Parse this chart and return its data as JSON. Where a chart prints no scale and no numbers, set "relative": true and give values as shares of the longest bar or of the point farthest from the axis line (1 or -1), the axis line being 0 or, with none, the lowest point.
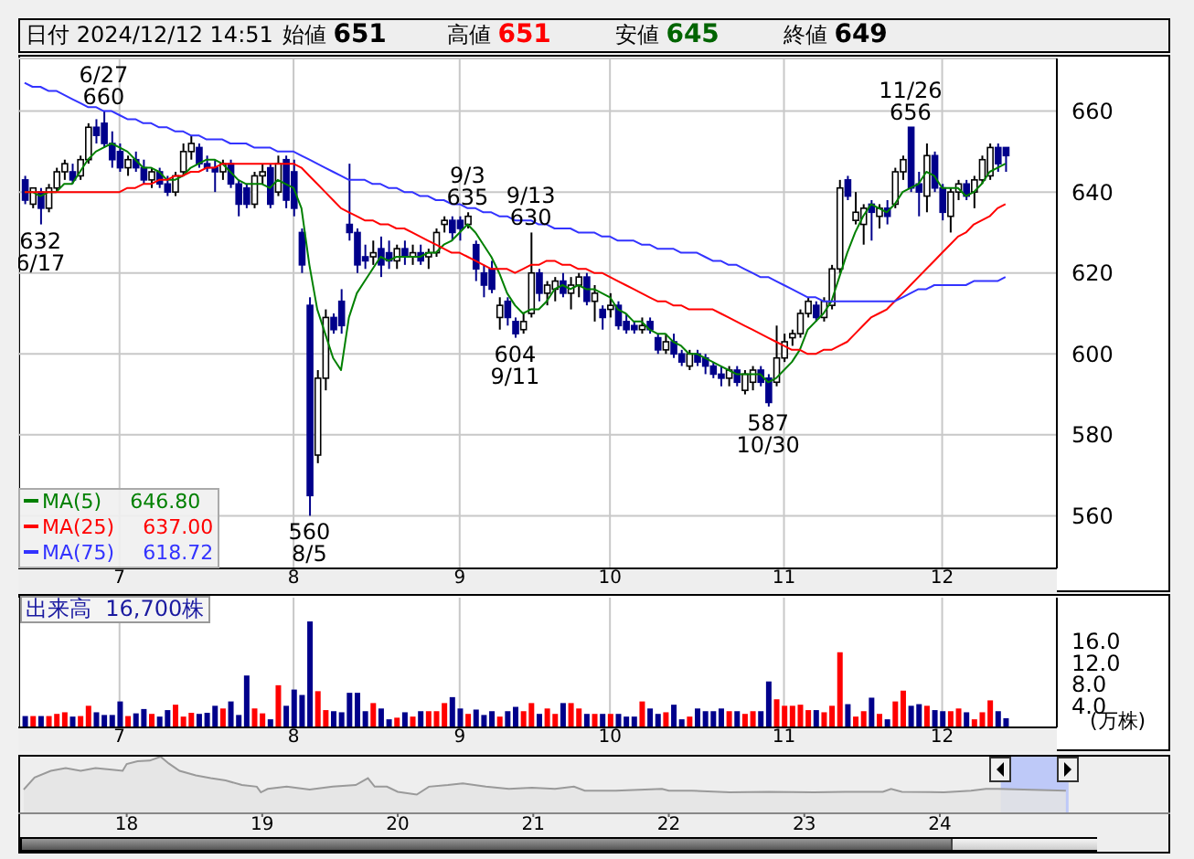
{
  "chart_data": [
    {
      "type": "candlestick",
      "title": "日付 2024/12/12 14:51",
      "annotations": [
        "始値 651",
        "高値 651",
        "安値 645",
        "終値 649",
        {
          "text": "6/27\n660",
          "y": 660
        },
        {
          "text": "632\n6/17",
          "y": 632
        },
        {
          "text": "560\n8/5",
          "y": 560
        },
        {
          "text": "9/3\n635",
          "y": 635
        },
        {
          "text": "604\n9/11",
          "y": 604
        },
        {
          "text": "9/13\n630",
          "y": 630
        },
        {
          "text": "587\n10/30",
          "y": 587
        },
        {
          "text": "11/26\n656",
          "y": 656
        }
      ],
      "categories": [
        null,
        null,
        null,
        null,
        null,
        null,
        null,
        null,
        null,
        null,
        null,
        null,
        "7",
        null,
        null,
        null,
        null,
        null,
        null,
        null,
        null,
        null,
        null,
        null,
        null,
        null,
        null,
        null,
        null,
        null,
        null,
        null,
        null,
        null,
        "8",
        null,
        null,
        null,
        null,
        null,
        null,
        null,
        null,
        null,
        null,
        null,
        null,
        null,
        null,
        null,
        null,
        null,
        null,
        null,
        null,
        "9",
        null,
        null,
        null,
        null,
        null,
        null,
        null,
        null,
        null,
        null,
        null,
        null,
        null,
        null,
        null,
        null,
        null,
        null,
        "10",
        null,
        null,
        null,
        null,
        null,
        null,
        null,
        null,
        null,
        null,
        null,
        null,
        null,
        null,
        null,
        null,
        null,
        null,
        null,
        null,
        null,
        "11",
        null,
        null,
        null,
        null,
        null,
        null,
        null,
        null,
        null,
        null,
        null,
        null,
        null,
        null,
        null,
        null,
        null,
        null,
        null,
        "12",
        null,
        null,
        null,
        null,
        null,
        null,
        null,
        null
      ],
      "ohlc": [
        [
          643,
          644,
          637,
          638
        ],
        [
          637,
          641,
          636,
          641
        ],
        [
          640,
          641,
          632,
          636
        ],
        [
          636,
          642,
          635,
          641
        ],
        [
          641,
          646,
          640,
          645
        ],
        [
          645,
          648,
          643,
          647
        ],
        [
          645,
          647,
          642,
          643
        ],
        [
          644,
          649,
          643,
          648
        ],
        [
          648,
          657,
          647,
          656
        ],
        [
          656,
          658,
          652,
          654
        ],
        [
          657,
          660,
          651,
          652
        ],
        [
          652,
          655,
          646,
          648
        ],
        [
          650,
          652,
          645,
          646
        ],
        [
          646,
          649,
          644,
          648
        ],
        [
          648,
          650,
          645,
          646
        ],
        [
          646,
          648,
          642,
          643
        ],
        [
          643,
          646,
          641,
          645
        ],
        [
          645,
          646,
          641,
          642
        ],
        [
          642,
          644,
          639,
          640
        ],
        [
          640,
          645,
          639,
          644
        ],
        [
          645,
          652,
          644,
          650
        ],
        [
          650,
          654,
          648,
          652
        ],
        [
          651,
          652,
          646,
          647
        ],
        [
          647,
          649,
          645,
          646
        ],
        [
          646,
          648,
          640,
          645
        ],
        [
          645,
          648,
          643,
          647
        ],
        [
          647,
          648,
          641,
          642
        ],
        [
          642,
          643,
          634,
          637
        ],
        [
          641,
          642,
          636,
          637
        ],
        [
          637,
          645,
          636,
          644
        ],
        [
          644,
          647,
          642,
          645
        ],
        [
          646,
          647,
          636,
          637
        ],
        [
          640,
          649,
          639,
          647
        ],
        [
          648,
          649,
          636,
          638
        ],
        [
          645,
          648,
          634,
          636
        ],
        [
          630,
          631,
          620,
          622
        ],
        [
          612,
          614,
          560,
          565
        ],
        [
          575,
          596,
          573,
          594
        ],
        [
          594,
          611,
          591,
          609
        ],
        [
          609,
          610,
          605,
          606
        ],
        [
          613,
          616,
          605,
          607
        ],
        [
          632,
          647,
          628,
          630
        ],
        [
          630,
          631,
          620,
          622
        ],
        [
          624,
          627,
          621,
          623
        ],
        [
          624,
          628,
          622,
          625
        ],
        [
          626,
          629,
          619,
          622
        ],
        [
          625,
          628,
          621,
          623
        ],
        [
          623,
          627,
          621,
          626
        ],
        [
          626,
          628,
          622,
          624
        ],
        [
          624,
          627,
          622,
          625
        ],
        [
          625,
          627,
          622,
          623
        ],
        [
          624,
          626,
          621,
          625
        ],
        [
          625,
          631,
          624,
          630
        ],
        [
          632,
          634,
          630,
          633
        ],
        [
          633,
          634,
          628,
          630
        ],
        [
          633,
          634,
          628,
          631
        ],
        [
          632,
          635,
          631,
          634
        ],
        [
          627,
          628,
          618,
          621
        ],
        [
          620,
          622,
          614,
          617
        ],
        [
          621,
          623,
          615,
          616
        ],
        [
          609,
          614,
          606,
          612
        ],
        [
          613,
          614,
          607,
          609
        ],
        [
          608,
          609,
          604,
          605
        ],
        [
          606,
          610,
          605,
          608
        ],
        [
          610,
          630,
          609,
          620
        ],
        [
          620,
          621,
          613,
          615
        ],
        [
          615,
          618,
          612,
          617
        ],
        [
          616,
          619,
          613,
          618
        ],
        [
          618,
          620,
          614,
          615
        ],
        [
          615,
          619,
          611,
          617
        ],
        [
          617,
          620,
          614,
          619
        ],
        [
          619,
          620,
          612,
          613
        ],
        [
          613,
          617,
          608,
          615
        ],
        [
          611,
          612,
          606,
          609
        ],
        [
          611,
          615,
          609,
          612
        ],
        [
          612,
          613,
          606,
          607
        ],
        [
          608,
          610,
          605,
          606
        ],
        [
          607,
          608,
          605,
          606
        ],
        [
          606,
          609,
          605,
          607
        ],
        [
          608,
          609,
          605,
          606
        ],
        [
          604,
          605,
          600,
          601
        ],
        [
          601,
          605,
          600,
          603
        ],
        [
          603,
          605,
          599,
          600
        ],
        [
          600,
          601,
          597,
          598
        ],
        [
          597,
          601,
          596,
          600
        ],
        [
          600,
          601,
          597,
          598
        ],
        [
          599,
          600,
          595,
          597
        ],
        [
          597,
          598,
          594,
          595
        ],
        [
          595,
          597,
          592,
          594
        ],
        [
          594,
          597,
          592,
          596
        ],
        [
          596,
          597,
          592,
          593
        ],
        [
          591,
          596,
          590,
          595
        ],
        [
          593,
          597,
          591,
          596
        ],
        [
          596,
          597,
          592,
          593
        ],
        [
          594,
          595,
          587,
          588
        ],
        [
          593,
          607,
          592,
          599
        ],
        [
          599,
          605,
          598,
          603
        ],
        [
          604,
          606,
          602,
          605
        ],
        [
          605,
          611,
          604,
          610
        ],
        [
          610,
          614,
          609,
          613
        ],
        [
          612,
          613,
          608,
          609
        ],
        [
          609,
          614,
          608,
          613
        ],
        [
          612,
          622,
          611,
          621
        ],
        [
          621,
          643,
          620,
          641
        ],
        [
          643,
          644,
          638,
          639
        ],
        [
          633,
          640,
          632,
          635
        ],
        [
          632,
          637,
          627,
          636
        ],
        [
          637,
          638,
          628,
          635
        ],
        [
          634,
          637,
          631,
          636
        ],
        [
          636,
          638,
          632,
          634
        ],
        [
          637,
          646,
          636,
          645
        ],
        [
          645,
          649,
          643,
          648
        ],
        [
          656,
          656,
          640,
          641
        ],
        [
          642,
          645,
          634,
          640
        ],
        [
          639,
          652,
          635,
          649
        ],
        [
          649,
          650,
          640,
          641
        ],
        [
          641,
          642,
          633,
          635
        ],
        [
          634,
          641,
          630,
          640
        ],
        [
          640,
          643,
          638,
          642
        ],
        [
          642,
          643,
          638,
          639
        ],
        [
          640,
          644,
          636,
          643
        ],
        [
          643,
          649,
          642,
          648
        ],
        [
          644,
          652,
          643,
          651
        ],
        [
          651,
          652,
          645,
          647
        ],
        [
          651,
          651,
          645,
          649
        ]
      ],
      "series": [
        {
          "type": "line",
          "name": "MA(5) 646.80",
          "color": "#008000",
          "values": [
            640,
            640,
            639,
            640,
            640,
            642,
            642,
            645,
            648,
            650,
            651,
            652,
            651,
            650,
            648,
            646,
            646,
            645,
            643,
            643,
            644,
            646,
            647,
            648,
            648,
            647,
            645,
            643,
            642,
            642,
            642,
            641,
            643,
            642,
            641,
            636,
            622,
            611,
            605,
            599,
            596,
            609,
            615,
            618,
            621,
            624,
            623,
            624,
            624,
            624,
            624,
            625,
            625,
            627,
            628,
            630,
            632,
            630,
            627,
            624,
            620,
            615,
            612,
            610,
            611,
            611,
            613,
            616,
            617,
            616,
            617,
            616,
            616,
            615,
            614,
            611,
            610,
            608,
            608,
            606,
            605,
            605,
            603,
            602,
            600,
            600,
            599,
            598,
            597,
            596,
            595,
            595,
            595,
            595,
            593,
            594,
            596,
            598,
            601,
            606,
            608,
            610,
            613,
            619,
            625,
            630,
            634,
            637,
            636,
            635,
            637,
            640,
            641,
            642,
            645,
            644,
            641,
            641,
            641,
            639,
            640,
            642,
            645,
            646,
            647
          ]
        },
        {
          "type": "line",
          "name": "MA(25) 637.00",
          "color": "#ff0000",
          "values": [
            640,
            640,
            640,
            640,
            640,
            640,
            640,
            640,
            640,
            640,
            640,
            640,
            640,
            641,
            641,
            642,
            642,
            643,
            643,
            644,
            644,
            645,
            645,
            646,
            646,
            647,
            647,
            647,
            647,
            647,
            647,
            647,
            647,
            647,
            647,
            646,
            644,
            642,
            640,
            638,
            636,
            635,
            634,
            633,
            633,
            632,
            632,
            631,
            631,
            630,
            629,
            628,
            627,
            626,
            625,
            625,
            624,
            623,
            622,
            621,
            621,
            621,
            620,
            621,
            622,
            622,
            623,
            623,
            622,
            622,
            621,
            621,
            620,
            620,
            619,
            618,
            617,
            616,
            615,
            614,
            613,
            613,
            612,
            612,
            611,
            611,
            611,
            611,
            610,
            609,
            608,
            607,
            606,
            605,
            604,
            603,
            602,
            601,
            601,
            600,
            600,
            601,
            601,
            602,
            603,
            605,
            607,
            609,
            610,
            611,
            613,
            615,
            617,
            619,
            621,
            623,
            625,
            627,
            629,
            630,
            632,
            633,
            634,
            636,
            637
          ]
        },
        {
          "type": "line",
          "name": "MA(75) 618.72",
          "color": "#3333ff",
          "values": [
            667,
            666,
            666,
            665,
            665,
            664,
            663,
            662,
            661,
            661,
            660,
            660,
            659,
            658,
            658,
            657,
            657,
            656,
            656,
            655,
            655,
            654,
            654,
            653,
            653,
            653,
            652,
            652,
            652,
            651,
            651,
            651,
            650,
            650,
            650,
            649,
            648,
            647,
            646,
            645,
            644,
            643,
            643,
            643,
            642,
            642,
            641,
            641,
            640,
            640,
            639,
            639,
            638,
            638,
            637,
            637,
            636,
            636,
            635,
            635,
            634,
            634,
            633,
            633,
            633,
            632,
            632,
            631,
            631,
            631,
            630,
            630,
            630,
            629,
            629,
            628,
            628,
            628,
            627,
            627,
            626,
            626,
            626,
            625,
            625,
            625,
            624,
            623,
            623,
            622,
            622,
            621,
            620,
            619,
            619,
            618,
            617,
            616,
            615,
            614,
            614,
            613,
            613,
            613,
            613,
            613,
            613,
            613,
            613,
            613,
            613,
            614,
            615,
            616,
            616,
            617,
            617,
            617,
            617,
            617,
            618,
            618,
            618,
            618,
            619
          ]
        }
      ],
      "ylim": [
        547,
        673
      ],
      "yticks": [
        560,
        580,
        600,
        620,
        640,
        660
      ],
      "grid": true,
      "legend": "bottom left"
    },
    {
      "type": "bar",
      "title": "出来高  16,700株",
      "ylabel": "(万株)",
      "categories": [
        null,
        null,
        null,
        null,
        null,
        null,
        null,
        null,
        null,
        null,
        null,
        null,
        "7",
        null,
        null,
        null,
        null,
        null,
        null,
        null,
        null,
        null,
        null,
        null,
        null,
        null,
        null,
        null,
        null,
        null,
        null,
        null,
        null,
        null,
        "8",
        null,
        null,
        null,
        null,
        null,
        null,
        null,
        null,
        null,
        null,
        null,
        null,
        null,
        null,
        null,
        null,
        null,
        null,
        null,
        null,
        "9",
        null,
        null,
        null,
        null,
        null,
        null,
        null,
        null,
        null,
        null,
        null,
        null,
        null,
        null,
        null,
        null,
        null,
        null,
        "10",
        null,
        null,
        null,
        null,
        null,
        null,
        null,
        null,
        null,
        null,
        null,
        null,
        null,
        null,
        null,
        null,
        null,
        null,
        null,
        null,
        null,
        "11",
        null,
        null,
        null,
        null,
        null,
        null,
        null,
        null,
        null,
        null,
        null,
        null,
        null,
        null,
        null,
        null,
        null,
        null,
        null,
        "12",
        null,
        null,
        null,
        null,
        null,
        null,
        null,
        null
      ],
      "values": [
        2.1,
        2.1,
        2.1,
        2.1,
        2.5,
        2.8,
        2.0,
        2.1,
        4.0,
        2.8,
        2.3,
        2.3,
        4.8,
        2.1,
        2.6,
        3.4,
        2.5,
        2.0,
        3.2,
        4.2,
        2.0,
        2.7,
        2.5,
        2.7,
        4.0,
        3.5,
        4.8,
        2.3,
        9.6,
        3.5,
        2.6,
        1.5,
        7.8,
        4.0,
        7.0,
        6.0,
        19.6,
        6.7,
        3.2,
        3.0,
        2.8,
        6.4,
        6.4,
        3.0,
        4.5,
        3.5,
        1.5,
        1.8,
        2.8,
        2.0,
        3.0,
        3.0,
        3.0,
        4.5,
        5.6,
        3.5,
        2.5,
        3.3,
        2.3,
        3.0,
        2.0,
        3.0,
        3.8,
        3.0,
        4.5,
        2.5,
        3.5,
        2.5,
        4.5,
        4.5,
        3.5,
        2.5,
        2.5,
        2.5,
        2.5,
        2.5,
        2.0,
        2.0,
        4.8,
        3.5,
        2.5,
        2.8,
        4.2,
        1.5,
        2.0,
        3.5,
        3.0,
        3.0,
        3.5,
        3.0,
        3.0,
        2.5,
        3.0,
        3.0,
        8.5,
        5.2,
        4.0,
        4.0,
        4.2,
        3.2,
        3.2,
        2.8,
        4.0,
        13.9,
        4.3,
        2.0,
        3.0,
        5.5,
        2.5,
        1.5,
        4.8,
        6.8,
        4.0,
        4.3,
        4.0,
        3.2,
        3.0,
        3.0,
        3.5,
        2.8,
        1.5,
        2.8,
        5.0,
        3.0,
        1.7
      ],
      "colors": [
        "#00008b",
        "#ff0000",
        "#00008b",
        "#ff0000",
        "#ff0000",
        "#ff0000",
        "#00008b",
        "#ff0000",
        "#ff0000",
        "#00008b",
        "#00008b",
        "#00008b",
        "#00008b",
        "#ff0000",
        "#00008b",
        "#00008b",
        "#ff0000",
        "#00008b",
        "#00008b",
        "#ff0000",
        "#ff0000",
        "#ff0000",
        "#00008b",
        "#00008b",
        "#00008b",
        "#ff0000",
        "#00008b",
        "#00008b",
        "#00008b",
        "#ff0000",
        "#ff0000",
        "#00008b",
        "#ff0000",
        "#00008b",
        "#00008b",
        "#00008b",
        "#00008b",
        "#ff0000",
        "#ff0000",
        "#00008b",
        "#00008b",
        "#00008b",
        "#00008b",
        "#00008b",
        "#ff0000",
        "#00008b",
        "#00008b",
        "#ff0000",
        "#00008b",
        "#ff0000",
        "#00008b",
        "#ff0000",
        "#ff0000",
        "#ff0000",
        "#00008b",
        "#00008b",
        "#ff0000",
        "#00008b",
        "#00008b",
        "#00008b",
        "#ff0000",
        "#00008b",
        "#00008b",
        "#ff0000",
        "#ff0000",
        "#00008b",
        "#ff0000",
        "#ff0000",
        "#00008b",
        "#ff0000",
        "#ff0000",
        "#00008b",
        "#ff0000",
        "#00008b",
        "#ff0000",
        "#00008b",
        "#00008b",
        "#00008b",
        "#ff0000",
        "#00008b",
        "#00008b",
        "#ff0000",
        "#00008b",
        "#00008b",
        "#ff0000",
        "#00008b",
        "#00008b",
        "#00008b",
        "#00008b",
        "#ff0000",
        "#00008b",
        "#ff0000",
        "#ff0000",
        "#00008b",
        "#00008b",
        "#ff0000",
        "#ff0000",
        "#ff0000",
        "#ff0000",
        "#ff0000",
        "#00008b",
        "#ff0000",
        "#ff0000",
        "#ff0000",
        "#00008b",
        "#ff0000",
        "#ff0000",
        "#00008b",
        "#ff0000",
        "#00008b",
        "#ff0000",
        "#ff0000",
        "#00008b",
        "#00008b",
        "#ff0000",
        "#00008b",
        "#00008b",
        "#ff0000",
        "#ff0000",
        "#00008b",
        "#ff0000",
        "#ff0000",
        "#ff0000",
        "#00008b",
        "#00008b"
      ],
      "ylim": [
        0,
        24
      ],
      "yticks": [
        {
          "value": 4,
          "label": "4.0"
        },
        {
          "value": 8,
          "label": "8.0"
        },
        {
          "value": 12,
          "label": "12.0"
        },
        {
          "value": 16,
          "label": "16.0"
        }
      ],
      "grid": "x"
    },
    {
      "type": "area",
      "relative": true,
      "color": "#9a9a9a",
      "x": [
        17.24,
        17.32,
        17.44,
        17.55,
        17.66,
        17.77,
        17.89,
        17.97,
        18.0,
        18.08,
        18.17,
        18.25,
        18.31,
        18.39,
        18.51,
        18.62,
        18.73,
        18.85,
        18.96,
        18.99,
        19.04,
        19.18,
        19.35,
        19.52,
        19.69,
        19.78,
        19.83,
        19.92,
        20.0,
        20.14,
        20.23,
        20.37,
        20.48,
        20.65,
        20.82,
        20.99,
        21.16,
        21.3,
        21.38,
        21.61,
        21.95,
        22.0,
        22.17,
        22.45,
        22.74,
        23.07,
        23.3,
        23.58,
        23.64,
        23.72,
        24.03,
        24.23,
        24.34,
        24.43,
        24.93
      ],
      "values": [
        0.42,
        0.63,
        0.75,
        0.8,
        0.75,
        0.8,
        0.77,
        0.75,
        0.87,
        0.92,
        0.93,
        1,
        0.88,
        0.75,
        0.67,
        0.62,
        0.58,
        0.5,
        0.47,
        0.37,
        0.43,
        0.47,
        0.42,
        0.47,
        0.5,
        0.62,
        0.47,
        0.47,
        0.38,
        0.33,
        0.47,
        0.5,
        0.53,
        0.47,
        0.43,
        0.45,
        0.43,
        0.47,
        0.4,
        0.4,
        0.43,
        0.4,
        0.4,
        0.37,
        0.38,
        0.37,
        0.38,
        0.38,
        0.43,
        0.38,
        0.37,
        0.4,
        0.43,
        0.43,
        0.4
      ],
      "xlim": [
        17.2,
        25.7
      ],
      "xticks": [
        18,
        19,
        20,
        21,
        22,
        23,
        24
      ],
      "bands": [
        {
          "axis": "x",
          "from": 24.45,
          "to": 24.95,
          "color": "#b8c4f8"
        }
      ]
    }
  ]
}
